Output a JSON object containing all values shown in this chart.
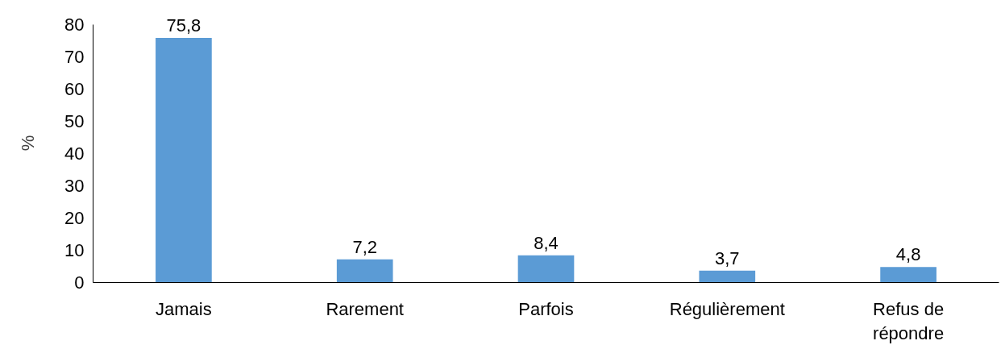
{
  "chart_data": {
    "type": "bar",
    "ylabel": "%",
    "categories": [
      "Jamais",
      "Rarement",
      "Parfois",
      "Régulièrement",
      "Refus de répondre"
    ],
    "values": [
      75.8,
      7.2,
      8.4,
      3.7,
      4.8
    ],
    "value_labels": [
      "75,8",
      "7,2",
      "8,4",
      "3,7",
      "4,8"
    ],
    "color": "#5b9bd5",
    "ylim": [
      0,
      80
    ],
    "yticks": [
      0,
      10,
      20,
      30,
      40,
      50,
      60,
      70,
      80
    ],
    "grid": false
  }
}
